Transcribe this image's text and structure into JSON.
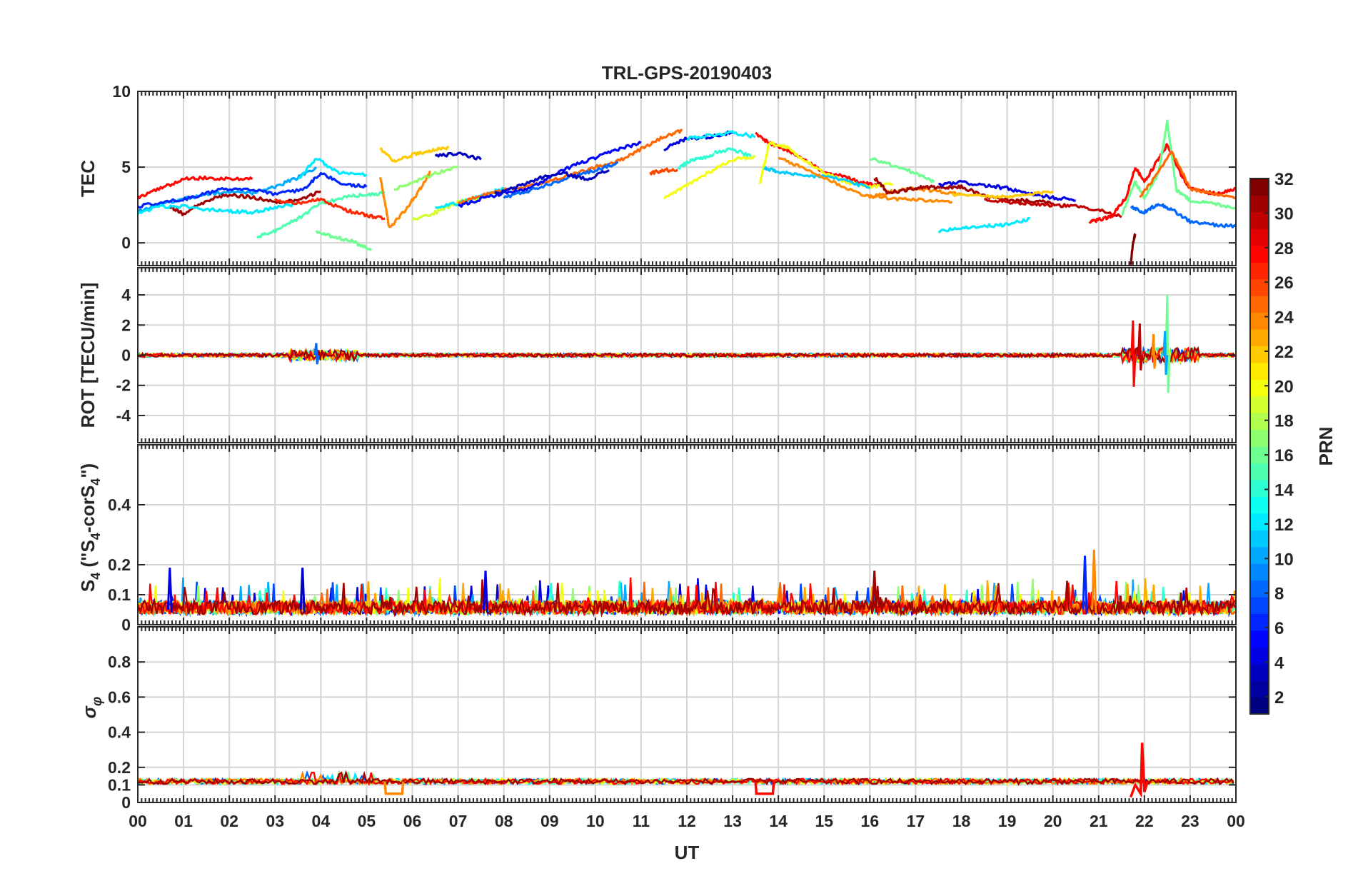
{
  "chart_data": {
    "type": "line",
    "title": "TRL-GPS-20190403",
    "xlabel": "UT",
    "x_ticks": [
      "00",
      "01",
      "02",
      "03",
      "04",
      "05",
      "06",
      "07",
      "08",
      "09",
      "10",
      "11",
      "12",
      "13",
      "14",
      "15",
      "16",
      "17",
      "18",
      "19",
      "20",
      "21",
      "22",
      "23",
      "00"
    ],
    "xlim": [
      0,
      24
    ],
    "grid": true,
    "panels": [
      {
        "id": "tec",
        "ylabel": "TEC",
        "ylim": [
          -1.5,
          10
        ],
        "y_ticks": [
          0,
          5,
          10
        ],
        "y_tick_labels": [
          "0",
          "5",
          "10"
        ],
        "series": [
          {
            "prn": 28,
            "x": [
              0,
              0.5,
              1,
              1.5,
              2,
              2.5
            ],
            "y": [
              3.0,
              3.6,
              4.2,
              4.3,
              4.2,
              4.2
            ]
          },
          {
            "prn": 10,
            "x": [
              0,
              0.5,
              1,
              1.5,
              2,
              2.5,
              3,
              3.5,
              3.9
            ],
            "y": [
              2.0,
              2.6,
              2.9,
              3.2,
              3.4,
              3.3,
              3.7,
              4.3,
              5.0
            ]
          },
          {
            "prn": 6,
            "x": [
              0,
              0.6,
              1.2,
              1.8,
              2.4,
              3,
              3.6,
              4,
              4.5,
              5
            ],
            "y": [
              2.4,
              2.7,
              3.0,
              3.5,
              3.6,
              3.2,
              3.5,
              4.6,
              3.9,
              3.7
            ]
          },
          {
            "prn": 31,
            "x": [
              0.7,
              1,
              1.5,
              2,
              2.5,
              3,
              3.5,
              4
            ],
            "y": [
              2.4,
              1.9,
              2.8,
              3.2,
              3.0,
              2.7,
              2.8,
              3.4
            ]
          },
          {
            "prn": 12,
            "x": [
              0,
              0.5,
              1,
              1.5,
              2,
              2.5,
              3,
              3.5
            ],
            "y": [
              2.0,
              2.4,
              2.4,
              2.2,
              2.1,
              2.0,
              2.3,
              2.6
            ]
          },
          {
            "prn": 15,
            "x": [
              2.6,
              3,
              3.5,
              4,
              4.5,
              5,
              5.4
            ],
            "y": [
              0.4,
              0.8,
              1.6,
              2.6,
              3.0,
              3.2,
              3.3
            ]
          },
          {
            "prn": 12,
            "x": [
              3.5,
              3.9,
              4.4,
              5
            ],
            "y": [
              4.2,
              5.6,
              4.6,
              4.5
            ]
          },
          {
            "prn": 27,
            "x": [
              3,
              3.5,
              4,
              4.5,
              5,
              5.4
            ],
            "y": [
              2.8,
              2.6,
              2.9,
              2.2,
              1.8,
              1.6
            ]
          },
          {
            "prn": 16,
            "x": [
              3.9,
              4.3,
              4.7,
              5.1
            ],
            "y": [
              0.7,
              0.4,
              0.1,
              -0.5
            ]
          },
          {
            "prn": 22,
            "x": [
              5.3,
              5.6,
              6,
              6.4,
              6.8
            ],
            "y": [
              6.2,
              5.4,
              5.8,
              6.1,
              6.3
            ]
          },
          {
            "prn": 24,
            "x": [
              5.3,
              5.5,
              5.8,
              6.1,
              6.4
            ],
            "y": [
              4.3,
              1.0,
              2.0,
              3.2,
              4.7
            ]
          },
          {
            "prn": 17,
            "x": [
              5.6,
              6,
              6.5,
              7
            ],
            "y": [
              3.5,
              4.0,
              4.6,
              5.0
            ]
          },
          {
            "prn": 3,
            "x": [
              6.5,
              7,
              7.5
            ],
            "y": [
              5.7,
              5.9,
              5.5
            ]
          },
          {
            "prn": 19,
            "x": [
              6,
              6.5,
              7,
              7.5
            ],
            "y": [
              1.5,
              2.0,
              2.7,
              3.0
            ]
          },
          {
            "prn": 12,
            "x": [
              6.5,
              7,
              7.5,
              8
            ],
            "y": [
              2.4,
              2.6,
              3.1,
              3.6
            ]
          },
          {
            "prn": 25,
            "x": [
              7,
              7.5,
              8,
              8.5,
              9,
              9.5,
              10,
              10.5,
              11,
              11.5,
              11.9
            ],
            "y": [
              2.6,
              3.1,
              3.5,
              3.7,
              4.1,
              4.5,
              5.0,
              5.4,
              6.2,
              7.0,
              7.4
            ]
          },
          {
            "prn": 5,
            "x": [
              7,
              7.5,
              8,
              8.5,
              9,
              9.5,
              10,
              10.5,
              11
            ],
            "y": [
              2.4,
              2.9,
              3.3,
              3.5,
              4.3,
              5.1,
              5.6,
              6.2,
              6.6
            ]
          },
          {
            "prn": 8,
            "x": [
              8,
              8.5,
              9,
              9.5,
              10,
              10.5
            ],
            "y": [
              3.0,
              3.4,
              3.9,
              4.4,
              4.8,
              5.3
            ]
          },
          {
            "prn": 3,
            "x": [
              7.8,
              8.3,
              8.8,
              9.3,
              9.8,
              10.3
            ],
            "y": [
              3.2,
              3.7,
              4.3,
              4.6,
              4.2,
              4.8
            ]
          },
          {
            "prn": 14,
            "x": [
              11.8,
              12,
              12.3,
              12.6
            ],
            "y": [
              4.9,
              5.3,
              5.6,
              5.8
            ]
          },
          {
            "prn": 26,
            "x": [
              11.2,
              11.5,
              11.8
            ],
            "y": [
              4.6,
              4.8,
              4.8
            ]
          },
          {
            "prn": 4,
            "x": [
              11.5,
              12,
              12.5,
              13
            ],
            "y": [
              6.2,
              6.9,
              7.0,
              7.3
            ]
          },
          {
            "prn": 20,
            "x": [
              11.5,
              12,
              12.5,
              13,
              13.5
            ],
            "y": [
              2.9,
              3.8,
              4.7,
              5.5,
              5.7
            ]
          },
          {
            "prn": 12,
            "x": [
              12,
              12.5,
              13,
              13.5
            ],
            "y": [
              6.9,
              7.1,
              7.3,
              7.0
            ]
          },
          {
            "prn": 14,
            "x": [
              12.6,
              13,
              13.4
            ],
            "y": [
              6.0,
              6.2,
              5.7
            ]
          },
          {
            "prn": 28,
            "x": [
              13.5,
              13.8,
              14.2,
              14.6,
              15,
              15.4,
              15.8,
              16.2
            ],
            "y": [
              7.2,
              6.6,
              6.1,
              5.5,
              4.6,
              4.4,
              4.0,
              3.8
            ]
          },
          {
            "prn": 20,
            "x": [
              13.6,
              13.8,
              14.2,
              14.6,
              15,
              15.5,
              16,
              16.5
            ],
            "y": [
              4.0,
              6.6,
              6.3,
              5.4,
              4.6,
              4.0,
              3.7,
              3.9
            ]
          },
          {
            "prn": 11,
            "x": [
              13.7,
              14,
              14.5,
              15,
              15.5,
              16
            ],
            "y": [
              4.9,
              4.7,
              4.4,
              4.4,
              4.1,
              3.6
            ]
          },
          {
            "prn": 24,
            "x": [
              14,
              14.5,
              15,
              15.5,
              16,
              16.5,
              17,
              17.5,
              18
            ],
            "y": [
              5.6,
              5.0,
              4.3,
              3.6,
              3.0,
              3.4,
              3.6,
              3.4,
              3.2
            ]
          },
          {
            "prn": 16,
            "x": [
              16,
              16.5,
              17,
              17.4
            ],
            "y": [
              5.6,
              5.1,
              4.6,
              4.0
            ]
          },
          {
            "prn": 31,
            "x": [
              16.1,
              16.4,
              16.8,
              17.2,
              17.6,
              18,
              18.5,
              19,
              19.5,
              20
            ],
            "y": [
              4.3,
              3.3,
              3.5,
              3.7,
              3.6,
              3.7,
              3.1,
              2.8,
              2.8,
              2.6
            ]
          },
          {
            "prn": 24,
            "x": [
              16,
              16.6,
              17.2,
              17.8
            ],
            "y": [
              3.1,
              2.9,
              2.8,
              2.7
            ]
          },
          {
            "prn": 4,
            "x": [
              17.5,
              18,
              18.5,
              19,
              19.5,
              20,
              20.5
            ],
            "y": [
              3.8,
              4.0,
              3.8,
              3.6,
              3.2,
              3.0,
              2.8
            ]
          },
          {
            "prn": 12,
            "x": [
              17.5,
              18,
              18.5,
              19,
              19.5
            ],
            "y": [
              0.8,
              1.0,
              1.1,
              1.2,
              1.6
            ]
          },
          {
            "prn": 22,
            "x": [
              17.8,
              18.5,
              19,
              19.5,
              20
            ],
            "y": [
              3.2,
              3.1,
              3.0,
              3.2,
              3.4
            ]
          },
          {
            "prn": 30,
            "x": [
              18.5,
              19,
              19.5,
              20,
              20.5,
              21,
              21.5
            ],
            "y": [
              2.9,
              2.7,
              2.6,
              2.5,
              2.4,
              2.2,
              1.7
            ]
          },
          {
            "prn": 28,
            "x": [
              20.8,
              21,
              21.3,
              21.6,
              21.8,
              22,
              22.3,
              22.5,
              22.8,
              23,
              23.3,
              23.6,
              24
            ],
            "y": [
              1.4,
              1.5,
              1.8,
              3.0,
              5.0,
              4.0,
              5.5,
              6.5,
              4.5,
              3.6,
              3.4,
              3.2,
              3.6
            ]
          },
          {
            "prn": 16,
            "x": [
              21.5,
              21.8,
              22,
              22.3,
              22.5,
              22.7,
              23,
              23.5,
              24
            ],
            "y": [
              1.8,
              4.0,
              3.0,
              4.5,
              8.0,
              3.5,
              2.8,
              2.6,
              2.3
            ]
          },
          {
            "prn": 8,
            "x": [
              21.7,
              22,
              22.3,
              22.6,
              23,
              23.5,
              24
            ],
            "y": [
              2.4,
              2.0,
              2.6,
              2.2,
              1.4,
              1.2,
              1.1
            ]
          },
          {
            "prn": 25,
            "x": [
              21.9,
              22.2,
              22.6,
              23,
              23.5,
              24
            ],
            "y": [
              3.0,
              4.2,
              6.0,
              3.6,
              3.2,
              3.0
            ]
          },
          {
            "prn": 32,
            "x": [
              21.7,
              21.75,
              21.8
            ],
            "y": [
              -1.5,
              0.0,
              0.6
            ]
          }
        ]
      },
      {
        "id": "rot",
        "ylabel": "ROT [TECU/min]",
        "ylim": [
          -5.8,
          5.8
        ],
        "y_ticks": [
          -4,
          -2,
          0,
          2,
          4
        ],
        "y_tick_labels": [
          "-4",
          "-2",
          "0",
          "2",
          "4"
        ],
        "spikes": [
          {
            "prn": 28,
            "x": 21.75,
            "ymax": 2.3,
            "ymin": -2.1
          },
          {
            "prn": 30,
            "x": 21.9,
            "ymax": 2.1,
            "ymin": -1.0
          },
          {
            "prn": 16,
            "x": 22.5,
            "ymax": 4.0,
            "ymin": -2.5
          },
          {
            "prn": 10,
            "x": 22.45,
            "ymax": 1.6,
            "ymin": -1.3
          },
          {
            "prn": 24,
            "x": 22.2,
            "ymax": 1.4,
            "ymin": -0.9
          },
          {
            "prn": 8,
            "x": 3.9,
            "ymax": 0.8,
            "ymin": -0.6
          }
        ]
      },
      {
        "id": "s4",
        "ylabel": "S",
        "ylabel_parts": [
          "S",
          "4",
          " (\"S",
          "4",
          "-corS",
          "4",
          "\")"
        ],
        "ylim": [
          0,
          0.6
        ],
        "y_ticks": [
          0,
          0.1,
          0.2,
          0.4
        ],
        "y_tick_labels": [
          "0",
          "0.1",
          "0.2",
          "0.4"
        ],
        "peaks": [
          {
            "prn": 6,
            "x": 20.7,
            "y": 0.23
          },
          {
            "prn": 24,
            "x": 20.9,
            "y": 0.25
          },
          {
            "prn": 4,
            "x": 0.7,
            "y": 0.19
          },
          {
            "prn": 3,
            "x": 3.6,
            "y": 0.19
          },
          {
            "prn": 4,
            "x": 7.6,
            "y": 0.18
          },
          {
            "prn": 31,
            "x": 16.1,
            "y": 0.18
          }
        ]
      },
      {
        "id": "sigphi",
        "ylabel": "σ",
        "ylabel_subscript": "φ",
        "ylim": [
          0,
          1
        ],
        "y_ticks": [
          0,
          0.1,
          0.2,
          0.4,
          0.6,
          0.8
        ],
        "y_tick_labels": [
          "0",
          "0.1",
          "0.2",
          "0.4",
          "0.6",
          "0.8"
        ],
        "base_level": 0.12,
        "features": [
          {
            "type": "dip",
            "prn": 24,
            "x0": 5.4,
            "x1": 5.8,
            "y": 0.05
          },
          {
            "type": "dip",
            "prn": 28,
            "x0": 13.5,
            "x1": 13.9,
            "y": 0.05
          },
          {
            "type": "spike",
            "prn": 28,
            "x": 21.95,
            "y": 0.34
          }
        ]
      }
    ],
    "colorbar": {
      "label": "PRN",
      "colormap": "jet",
      "range": [
        1,
        32
      ],
      "ticks": [
        2,
        4,
        6,
        8,
        10,
        12,
        14,
        16,
        18,
        20,
        22,
        24,
        26,
        28,
        30,
        32
      ],
      "tick_labels": [
        "2",
        "4",
        "6",
        "8",
        "10",
        "12",
        "14",
        "16",
        "18",
        "20",
        "22",
        "24",
        "26",
        "28",
        "30",
        "32"
      ],
      "levels": 32
    }
  }
}
